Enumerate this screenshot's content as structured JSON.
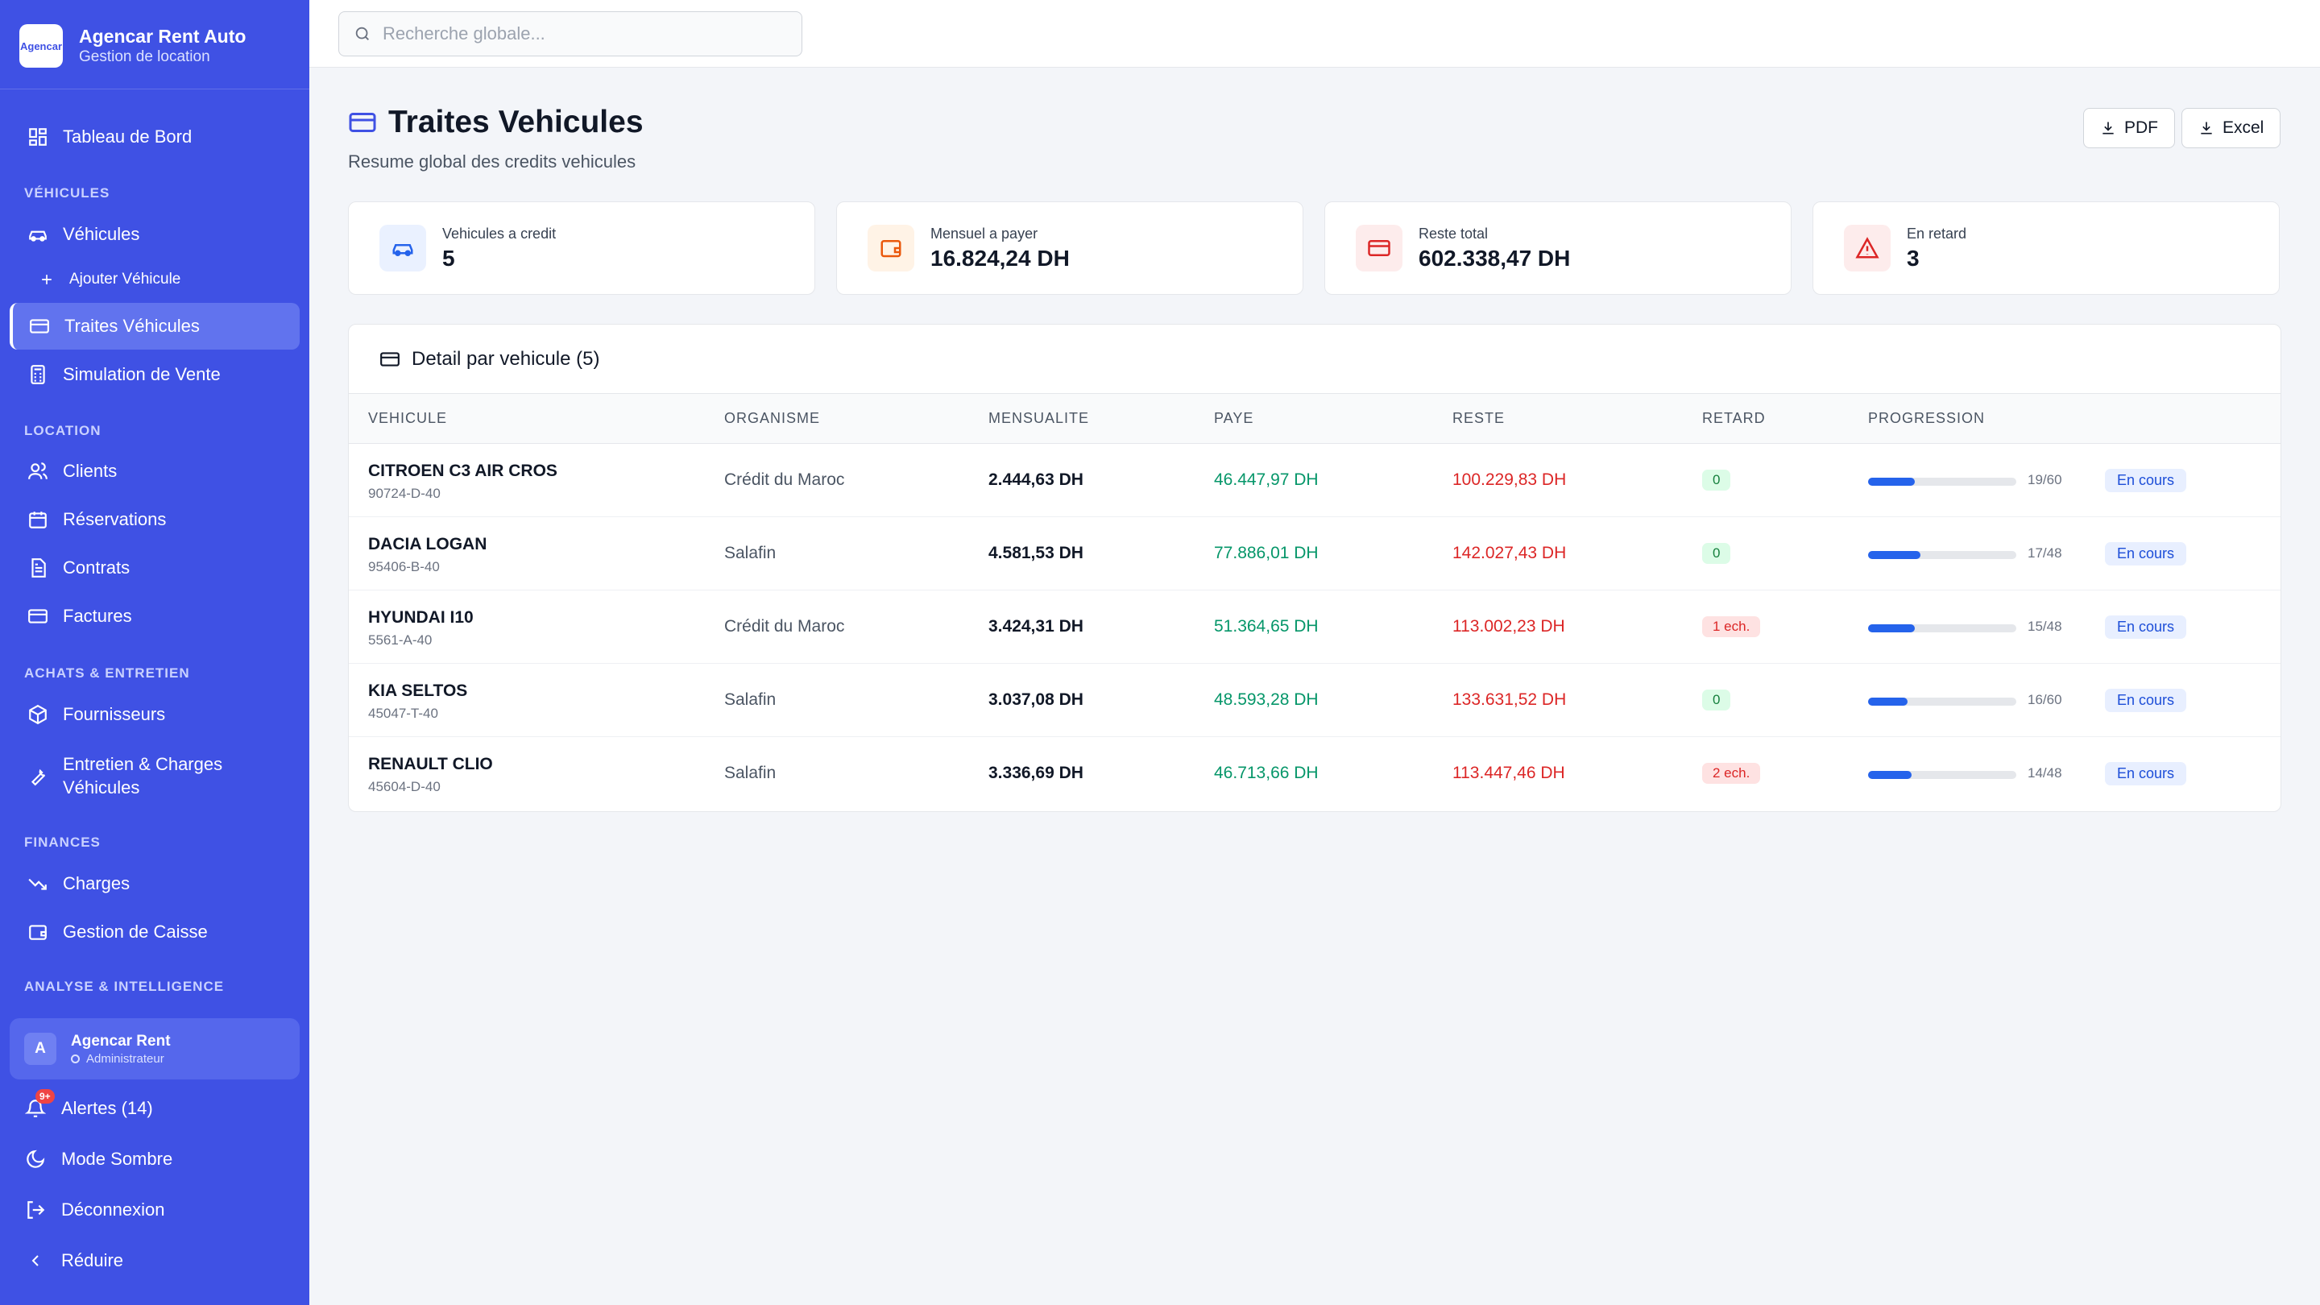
{
  "brand": {
    "name": "Agencar Rent Auto",
    "subtitle": "Gestion de location",
    "logo_text": "Agencar"
  },
  "sidebar": {
    "dashboard": "Tableau de Bord",
    "sections": {
      "vehicules": "VÉHICULES",
      "location": "LOCATION",
      "achats": "ACHATS & ENTRETIEN",
      "finances": "FINANCES",
      "analyse": "ANALYSE & INTELLIGENCE"
    },
    "items": {
      "vehicules": "Véhicules",
      "ajouter": "Ajouter Véhicule",
      "traites": "Traites Véhicules",
      "simulation": "Simulation de Vente",
      "clients": "Clients",
      "reservations": "Réservations",
      "contrats": "Contrats",
      "factures": "Factures",
      "fournisseurs": "Fournisseurs",
      "entretien_line1": "Entretien & Charges",
      "entretien_line2": "Véhicules",
      "charges": "Charges",
      "caisse": "Gestion de Caisse"
    },
    "active": "traites"
  },
  "user": {
    "initial": "A",
    "name": "Agencar Rent",
    "role": "Administrateur"
  },
  "bottom": {
    "alerts": "Alertes (14)",
    "alerts_badge": "9+",
    "dark_mode": "Mode Sombre",
    "logout": "Déconnexion",
    "collapse": "Réduire"
  },
  "search": {
    "placeholder": "Recherche globale..."
  },
  "page": {
    "title": "Traites Vehicules",
    "subtitle": "Resume global des credits vehicules",
    "export_pdf": "PDF",
    "export_excel": "Excel"
  },
  "kpis": [
    {
      "label": "Vehicules a credit",
      "value": "5",
      "icon": "car-icon",
      "color": "#2563eb"
    },
    {
      "label": "Mensuel a payer",
      "value": "16.824,24 DH",
      "icon": "wallet-icon",
      "color": "#ea580c"
    },
    {
      "label": "Reste total",
      "value": "602.338,47 DH",
      "icon": "credit-card-icon",
      "color": "#dc2626"
    },
    {
      "label": "En retard",
      "value": "3",
      "icon": "alert-triangle-icon",
      "color": "#dc2626"
    }
  ],
  "table": {
    "title": "Detail par vehicule (5)",
    "headers": [
      "VEHICULE",
      "ORGANISME",
      "MENSUALITE",
      "PAYE",
      "RESTE",
      "RETARD",
      "PROGRESSION"
    ],
    "rows": [
      {
        "name": "CITROEN C3 AIR CROS",
        "plate": "90724-D-40",
        "org": "Crédit du Maroc",
        "mens": "2.444,63 DH",
        "paye": "46.447,97 DH",
        "reste": "100.229,83 DH",
        "retard": "0",
        "late": false,
        "progress": "19/60",
        "progress_frac": 0.317,
        "status": "En cours"
      },
      {
        "name": "DACIA LOGAN",
        "plate": "95406-B-40",
        "org": "Salafin",
        "mens": "4.581,53 DH",
        "paye": "77.886,01 DH",
        "reste": "142.027,43 DH",
        "retard": "0",
        "late": false,
        "progress": "17/48",
        "progress_frac": 0.354,
        "status": "En cours"
      },
      {
        "name": "HYUNDAI I10",
        "plate": "5561-A-40",
        "org": "Crédit du Maroc",
        "mens": "3.424,31 DH",
        "paye": "51.364,65 DH",
        "reste": "113.002,23 DH",
        "retard": "1 ech.",
        "late": true,
        "progress": "15/48",
        "progress_frac": 0.313,
        "status": "En cours"
      },
      {
        "name": "KIA SELTOS",
        "plate": "45047-T-40",
        "org": "Salafin",
        "mens": "3.037,08 DH",
        "paye": "48.593,28 DH",
        "reste": "133.631,52 DH",
        "retard": "0",
        "late": false,
        "progress": "16/60",
        "progress_frac": 0.267,
        "status": "En cours"
      },
      {
        "name": "RENAULT CLIO",
        "plate": "45604-D-40",
        "org": "Salafin",
        "mens": "3.336,69 DH",
        "paye": "46.713,66 DH",
        "reste": "113.447,46 DH",
        "retard": "2 ech.",
        "late": true,
        "progress": "14/48",
        "progress_frac": 0.292,
        "status": "En cours"
      }
    ]
  }
}
